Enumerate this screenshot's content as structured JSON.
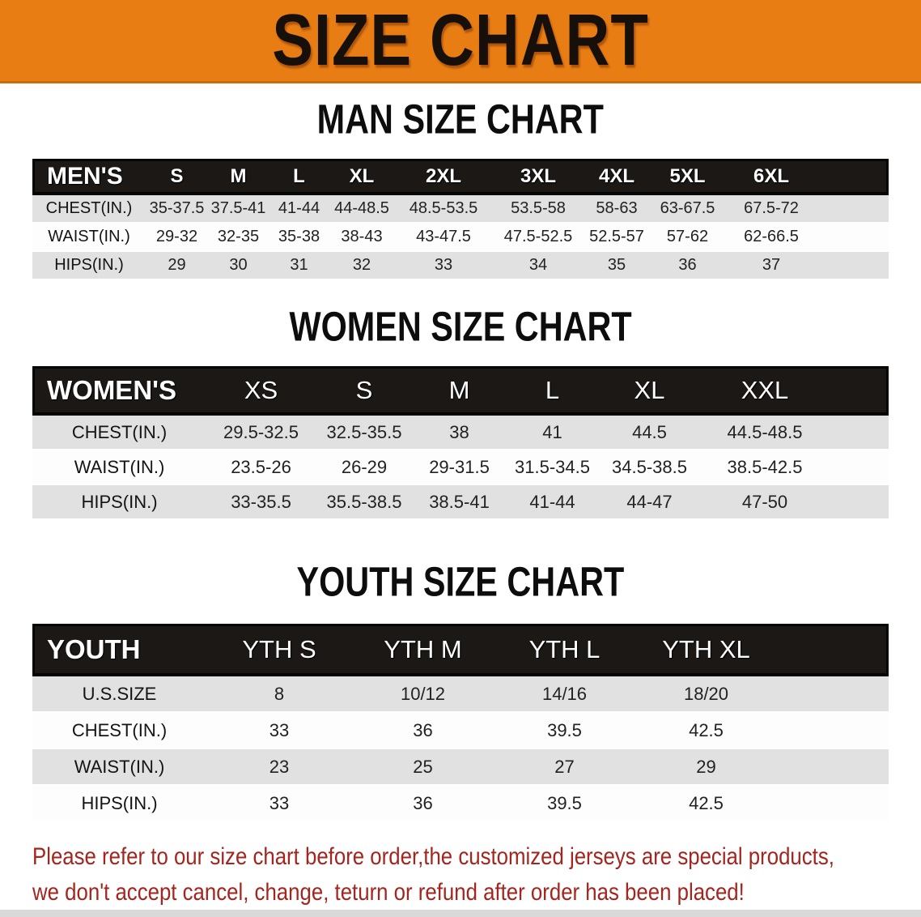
{
  "banner": {
    "title": "SIZE CHART"
  },
  "colors": {
    "banner_orange": "#e87d14",
    "bar_black": "#1b1816",
    "row_gray": "#e2e1e2",
    "disclaimer_red": "#a3251e"
  },
  "sections": [
    {
      "heading": "MAN SIZE CHART",
      "table": {
        "label": "MEN'S",
        "columns": [
          "S",
          "M",
          "L",
          "XL",
          "2XL",
          "3XL",
          "4XL",
          "5XL",
          "6XL"
        ],
        "rows": [
          {
            "label": "CHEST(IN.)",
            "values": [
              "35-37.5",
              "37.5-41",
              "41-44",
              "44-48.5",
              "48.5-53.5",
              "53.5-58",
              "58-63",
              "63-67.5",
              "67.5-72"
            ]
          },
          {
            "label": "WAIST(IN.)",
            "values": [
              "29-32",
              "32-35",
              "35-38",
              "38-43",
              "43-47.5",
              "47.5-52.5",
              "52.5-57",
              "57-62",
              "62-66.5"
            ]
          },
          {
            "label": "HIPS(IN.)",
            "values": [
              "29",
              "30",
              "31",
              "32",
              "33",
              "34",
              "35",
              "36",
              "37"
            ]
          }
        ]
      }
    },
    {
      "heading": "WOMEN SIZE CHART",
      "table": {
        "label": "WOMEN'S",
        "columns": [
          "XS",
          "S",
          "M",
          "L",
          "XL",
          "XXL"
        ],
        "rows": [
          {
            "label": "CHEST(IN.)",
            "values": [
              "29.5-32.5",
              "32.5-35.5",
              "38",
              "41",
              "44.5",
              "44.5-48.5"
            ]
          },
          {
            "label": "WAIST(IN.)",
            "values": [
              "23.5-26",
              "26-29",
              "29-31.5",
              "31.5-34.5",
              "34.5-38.5",
              "38.5-42.5"
            ]
          },
          {
            "label": "HIPS(IN.)",
            "values": [
              "33-35.5",
              "35.5-38.5",
              "38.5-41",
              "41-44",
              "44-47",
              "47-50"
            ]
          }
        ]
      }
    },
    {
      "heading": "YOUTH SIZE CHART",
      "table": {
        "label": "YOUTH",
        "columns": [
          "YTH S",
          "YTH M",
          "YTH L",
          "YTH XL"
        ],
        "rows": [
          {
            "label": "U.S.SIZE",
            "values": [
              "8",
              "10/12",
              "14/16",
              "18/20"
            ]
          },
          {
            "label": "CHEST(IN.)",
            "values": [
              "33",
              "36",
              "39.5",
              "42.5"
            ]
          },
          {
            "label": "WAIST(IN.)",
            "values": [
              "23",
              "25",
              "27",
              "29"
            ]
          },
          {
            "label": "HIPS(IN.)",
            "values": [
              "33",
              "36",
              "39.5",
              "42.5"
            ]
          }
        ]
      }
    }
  ],
  "disclaimer": {
    "line1": "Please refer to our size chart before order,the customized jerseys are special products,",
    "line2": "we don't accept cancel, change, teturn or refund after order has been placed!"
  }
}
